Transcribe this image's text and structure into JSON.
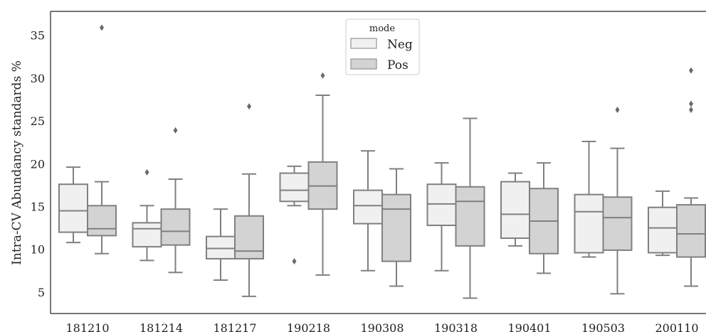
{
  "chart_data": {
    "type": "box",
    "title": "",
    "xlabel": "",
    "ylabel": "Intra-CV Abundancy standards %",
    "ylim": [
      2.5,
      37.8
    ],
    "yticks": [
      5,
      10,
      15,
      20,
      25,
      30,
      35
    ],
    "grid": false,
    "legend": {
      "title": "mode",
      "placement": "top-center"
    },
    "categories": [
      "181210",
      "181214",
      "181217",
      "190218",
      "190308",
      "190318",
      "190401",
      "190503",
      "200110"
    ],
    "series": [
      {
        "name": "Neg",
        "color": "#f0f0f0",
        "boxes": [
          {
            "whislo": 10.8,
            "q1": 12.0,
            "med": 14.5,
            "q3": 17.6,
            "whishi": 19.6,
            "fliers": []
          },
          {
            "whislo": 8.7,
            "q1": 10.3,
            "med": 12.4,
            "q3": 13.1,
            "whishi": 15.1,
            "fliers": [
              19.0
            ]
          },
          {
            "whislo": 6.4,
            "q1": 8.9,
            "med": 10.1,
            "q3": 11.5,
            "whishi": 14.7,
            "fliers": []
          },
          {
            "whislo": 15.1,
            "q1": 15.6,
            "med": 16.9,
            "q3": 18.9,
            "whishi": 19.7,
            "fliers": [
              8.6
            ]
          },
          {
            "whislo": 7.5,
            "q1": 13.0,
            "med": 15.1,
            "q3": 16.9,
            "whishi": 21.5,
            "fliers": []
          },
          {
            "whislo": 7.5,
            "q1": 12.8,
            "med": 15.3,
            "q3": 17.6,
            "whishi": 20.1,
            "fliers": []
          },
          {
            "whislo": 10.4,
            "q1": 11.3,
            "med": 14.1,
            "q3": 17.9,
            "whishi": 18.9,
            "fliers": []
          },
          {
            "whislo": 9.1,
            "q1": 9.6,
            "med": 14.4,
            "q3": 16.4,
            "whishi": 22.6,
            "fliers": []
          },
          {
            "whislo": 9.3,
            "q1": 9.6,
            "med": 12.5,
            "q3": 14.9,
            "whishi": 16.8,
            "fliers": []
          }
        ]
      },
      {
        "name": "Pos",
        "color": "#d3d3d3",
        "boxes": [
          {
            "whislo": 9.5,
            "q1": 11.6,
            "med": 12.4,
            "q3": 15.1,
            "whishi": 17.9,
            "fliers": [
              35.9
            ]
          },
          {
            "whislo": 7.3,
            "q1": 10.5,
            "med": 12.1,
            "q3": 14.7,
            "whishi": 18.2,
            "fliers": [
              23.9
            ]
          },
          {
            "whislo": 4.5,
            "q1": 8.9,
            "med": 9.8,
            "q3": 13.9,
            "whishi": 18.8,
            "fliers": [
              26.7
            ]
          },
          {
            "whislo": 7.0,
            "q1": 14.7,
            "med": 17.4,
            "q3": 20.2,
            "whishi": 28.0,
            "fliers": [
              30.3
            ]
          },
          {
            "whislo": 5.7,
            "q1": 8.6,
            "med": 14.7,
            "q3": 16.4,
            "whishi": 19.4,
            "fliers": []
          },
          {
            "whislo": 4.3,
            "q1": 10.4,
            "med": 15.6,
            "q3": 17.3,
            "whishi": 25.3,
            "fliers": []
          },
          {
            "whislo": 7.2,
            "q1": 9.5,
            "med": 13.3,
            "q3": 17.1,
            "whishi": 20.1,
            "fliers": []
          },
          {
            "whislo": 4.8,
            "q1": 9.9,
            "med": 13.7,
            "q3": 16.1,
            "whishi": 21.8,
            "fliers": [
              26.3
            ]
          },
          {
            "whislo": 5.7,
            "q1": 9.1,
            "med": 11.8,
            "q3": 15.2,
            "whishi": 16.0,
            "fliers": [
              26.3,
              27.0,
              30.9
            ]
          }
        ]
      }
    ]
  }
}
